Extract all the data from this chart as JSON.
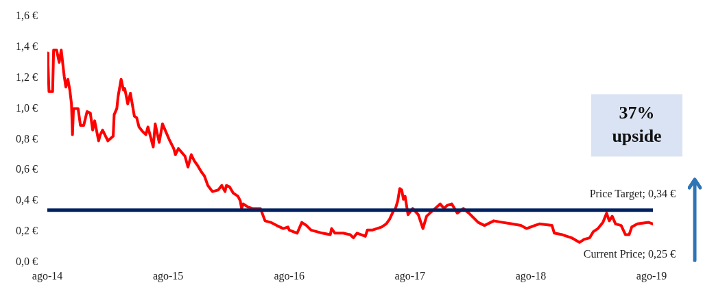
{
  "chart_data": {
    "type": "line",
    "x": [
      "2014-08-01",
      "2014-08-03",
      "2014-08-06",
      "2014-08-17",
      "2014-08-20",
      "2014-08-29",
      "2014-09-06",
      "2014-09-12",
      "2014-09-21",
      "2014-09-26",
      "2014-10-02",
      "2014-10-08",
      "2014-10-13",
      "2014-10-16",
      "2014-10-19",
      "2014-11-02",
      "2014-11-09",
      "2014-11-19",
      "2014-11-29",
      "2014-12-09",
      "2014-12-16",
      "2014-12-22",
      "2015-01-03",
      "2015-01-08",
      "2015-01-15",
      "2015-01-31",
      "2015-02-16",
      "2015-02-19",
      "2015-02-27",
      "2015-03-03",
      "2015-03-12",
      "2015-03-19",
      "2015-03-23",
      "2015-04-01",
      "2015-04-09",
      "2015-04-21",
      "2015-04-28",
      "2015-05-05",
      "2015-05-16",
      "2015-05-26",
      "2015-06-01",
      "2015-06-17",
      "2015-06-23",
      "2015-06-30",
      "2015-07-05",
      "2015-07-15",
      "2015-08-04",
      "2015-08-18",
      "2015-08-23",
      "2015-09-01",
      "2015-09-21",
      "2015-09-30",
      "2015-10-10",
      "2015-10-19",
      "2015-10-29",
      "2015-11-09",
      "2015-11-19",
      "2015-11-29",
      "2015-12-13",
      "2015-12-30",
      "2016-01-10",
      "2016-01-20",
      "2016-01-24",
      "2016-02-03",
      "2016-02-14",
      "2016-02-28",
      "2016-03-06",
      "2016-03-10",
      "2016-03-15",
      "2016-03-29",
      "2016-04-12",
      "2016-05-06",
      "2016-05-20",
      "2016-06-06",
      "2016-06-24",
      "2016-07-14",
      "2016-07-28",
      "2016-08-01",
      "2016-08-25",
      "2016-09-08",
      "2016-09-22",
      "2016-10-06",
      "2016-11-09",
      "2016-12-03",
      "2016-12-07",
      "2016-12-17",
      "2017-01-11",
      "2017-02-01",
      "2017-02-11",
      "2017-02-22",
      "2017-03-19",
      "2017-03-25",
      "2017-04-09",
      "2017-05-07",
      "2017-05-21",
      "2017-05-31",
      "2017-06-11",
      "2017-06-18",
      "2017-06-25",
      "2017-07-01",
      "2017-07-07",
      "2017-07-12",
      "2017-07-17",
      "2017-07-26",
      "2017-08-09",
      "2017-08-26",
      "2017-09-09",
      "2017-09-20",
      "2017-09-30",
      "2017-10-31",
      "2017-11-12",
      "2017-11-21",
      "2017-12-05",
      "2017-12-22",
      "2018-01-09",
      "2018-01-26",
      "2018-02-23",
      "2018-03-14",
      "2018-04-11",
      "2018-05-08",
      "2018-06-05",
      "2018-07-02",
      "2018-07-19",
      "2018-08-13",
      "2018-08-27",
      "2018-10-04",
      "2018-10-11",
      "2018-11-04",
      "2018-12-02",
      "2018-12-26",
      "2019-01-09",
      "2019-01-26",
      "2019-02-06",
      "2019-02-20",
      "2019-03-07",
      "2019-03-18",
      "2019-03-26",
      "2019-04-04",
      "2019-04-14",
      "2019-05-01",
      "2019-05-14",
      "2019-05-25",
      "2019-06-02",
      "2019-06-19",
      "2019-07-23",
      "2019-08-05"
    ],
    "series": [
      {
        "color": "#ff0000",
        "values": [
          1.36,
          1.29,
          1.11,
          1.11,
          1.38,
          1.38,
          1.3,
          1.38,
          1.21,
          1.14,
          1.19,
          1.12,
          1.03,
          0.83,
          1.0,
          1.0,
          0.89,
          0.89,
          0.98,
          0.97,
          0.86,
          0.92,
          0.79,
          0.83,
          0.86,
          0.79,
          0.82,
          0.96,
          1.0,
          1.08,
          1.19,
          1.12,
          1.13,
          1.03,
          1.1,
          0.95,
          0.94,
          0.88,
          0.85,
          0.83,
          0.88,
          0.75,
          0.9,
          0.83,
          0.78,
          0.9,
          0.8,
          0.74,
          0.7,
          0.74,
          0.69,
          0.62,
          0.7,
          0.66,
          0.63,
          0.59,
          0.56,
          0.5,
          0.46,
          0.47,
          0.5,
          0.46,
          0.5,
          0.49,
          0.45,
          0.43,
          0.4,
          0.35,
          0.38,
          0.36,
          0.35,
          0.35,
          0.27,
          0.26,
          0.24,
          0.22,
          0.23,
          0.21,
          0.19,
          0.26,
          0.24,
          0.21,
          0.19,
          0.18,
          0.22,
          0.19,
          0.19,
          0.18,
          0.16,
          0.19,
          0.17,
          0.21,
          0.21,
          0.23,
          0.25,
          0.28,
          0.33,
          0.35,
          0.4,
          0.48,
          0.47,
          0.41,
          0.43,
          0.31,
          0.35,
          0.31,
          0.22,
          0.3,
          0.32,
          0.38,
          0.35,
          0.37,
          0.38,
          0.32,
          0.35,
          0.32,
          0.26,
          0.24,
          0.27,
          0.26,
          0.25,
          0.24,
          0.22,
          0.24,
          0.25,
          0.24,
          0.19,
          0.18,
          0.16,
          0.13,
          0.15,
          0.16,
          0.2,
          0.22,
          0.26,
          0.32,
          0.27,
          0.3,
          0.25,
          0.24,
          0.18,
          0.18,
          0.23,
          0.25,
          0.26,
          0.25
        ]
      }
    ],
    "xlim": [
      "2014-08-01",
      "2019-08-05"
    ],
    "xticks": [
      {
        "value": "2014-08-01",
        "label": "ago-14"
      },
      {
        "value": "2015-08-01",
        "label": "ago-15"
      },
      {
        "value": "2016-08-01",
        "label": "ago-16"
      },
      {
        "value": "2017-08-01",
        "label": "ago-17"
      },
      {
        "value": "2018-08-01",
        "label": "ago-18"
      },
      {
        "value": "2019-08-01",
        "label": "ago-19"
      }
    ],
    "ylim": [
      0,
      1.6
    ],
    "yticks": [
      {
        "value": 0,
        "label": "0,0 €"
      },
      {
        "value": 0.2,
        "label": "0,2 €"
      },
      {
        "value": 0.4,
        "label": "0,4 €"
      },
      {
        "value": 0.6,
        "label": "0,6 €"
      },
      {
        "value": 0.8,
        "label": "0,8 €"
      },
      {
        "value": 1.0,
        "label": "1,0 €"
      },
      {
        "value": 1.2,
        "label": "1,2 €"
      },
      {
        "value": 1.4,
        "label": "1,4 €"
      },
      {
        "value": 1.6,
        "label": "1,6 €"
      }
    ],
    "ref_lines": [
      {
        "axis": "y",
        "value": 0.34,
        "label": "Price Target; 0,34 €",
        "color": "#002060"
      }
    ],
    "annotations": [
      "37% upside",
      {
        "text": "Current Price; 0,25 €",
        "x": "2019-08-05",
        "y": 0.25
      }
    ]
  }
}
